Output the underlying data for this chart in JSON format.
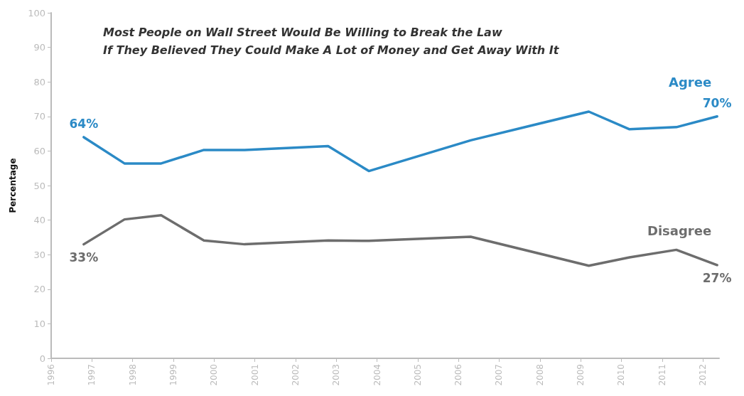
{
  "chart_data": {
    "type": "line",
    "title": "Most People on Wall Street Would Be Willing to Break the Law\nIf They Believed They Could Make A Lot of Money and Get Away With It",
    "ylabel": "Percentage",
    "x": [
      1996.8,
      1997.8,
      1998.7,
      1999.75,
      2000.75,
      2002.8,
      2003.8,
      2006.3,
      2009.2,
      2010.2,
      2011.35,
      2012.35
    ],
    "series": [
      {
        "name": "Agree",
        "color": "#2b8ac6",
        "values": [
          64,
          56.4,
          56.4,
          60.3,
          60.3,
          61.4,
          54.2,
          63.1,
          71.4,
          66.3,
          66.9,
          70
        ],
        "value_labels": [
          "64%",
          null,
          null,
          null,
          null,
          null,
          null,
          null,
          null,
          null,
          null,
          "70%"
        ]
      },
      {
        "name": "Disagree",
        "color": "#6d6d6d",
        "values": [
          33,
          40.2,
          41.4,
          34.1,
          33,
          34.1,
          34,
          35.2,
          26.8,
          29.2,
          31.4,
          27
        ],
        "value_labels": [
          "33%",
          null,
          null,
          null,
          null,
          null,
          null,
          null,
          null,
          null,
          null,
          "27%"
        ]
      }
    ],
    "xlim": [
      1996,
      2012.4
    ],
    "xticks": [
      1996,
      1997,
      1998,
      1999,
      2000,
      2001,
      2002,
      2003,
      2004,
      2005,
      2006,
      2007,
      2008,
      2009,
      2010,
      2011,
      2012
    ],
    "ylim": [
      0,
      100
    ],
    "yticks": [
      0,
      10,
      20,
      30,
      40,
      50,
      60,
      70,
      80,
      90,
      100
    ],
    "grid": false,
    "legend": false,
    "marker": "none",
    "line_style": "solid"
  }
}
